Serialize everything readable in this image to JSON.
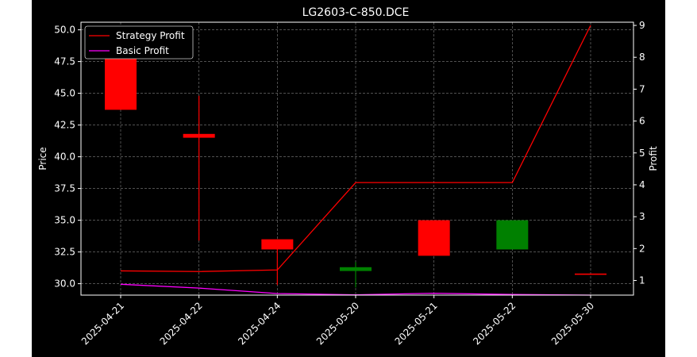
{
  "chart_data": {
    "type": "candlestick",
    "title": "LG2603-C-850.DCE",
    "xlabel": "",
    "ylabel": "Price",
    "y2label": "Profit",
    "categories": [
      "2025-04-21",
      "2025-04-22",
      "2025-04-24",
      "2025-05-20",
      "2025-05-21",
      "2025-05-22",
      "2025-05-30"
    ],
    "candles": [
      {
        "open": 50.0,
        "close": 43.7,
        "high": 50.0,
        "low": 43.7
      },
      {
        "open": 41.8,
        "close": 41.5,
        "high": 44.8,
        "low": 33.4
      },
      {
        "open": 33.5,
        "close": 32.7,
        "high": 33.5,
        "low": 29.9
      },
      {
        "open": 31.0,
        "close": 31.3,
        "high": 31.7,
        "low": 29.7
      },
      {
        "open": 35.0,
        "close": 32.2,
        "high": 35.0,
        "low": 32.2
      },
      {
        "open": 32.7,
        "close": 35.0,
        "high": 35.0,
        "low": 32.7
      },
      {
        "open": 30.8,
        "close": 30.7,
        "high": 30.8,
        "low": 30.7
      }
    ],
    "ylim": [
      29.1,
      50.6
    ],
    "yticks": [
      "30.0",
      "32.5",
      "35.0",
      "37.5",
      "40.0",
      "42.5",
      "45.0",
      "47.5",
      "50.0"
    ],
    "y2lim": [
      0.54,
      9.1
    ],
    "y2ticks": [
      "1",
      "2",
      "3",
      "4",
      "5",
      "6",
      "7",
      "8",
      "9"
    ],
    "series": [
      {
        "name": "Strategy Profit",
        "axis": "right",
        "color": "#ff0000",
        "values": [
          1.3,
          1.28,
          1.33,
          4.07,
          4.07,
          4.07,
          9.0
        ]
      },
      {
        "name": "Basic Profit",
        "axis": "right",
        "color": "#ff00ff",
        "values": [
          0.88,
          0.76,
          0.59,
          0.55,
          0.6,
          0.56,
          0.54
        ]
      }
    ],
    "colors": {
      "up": "#008000",
      "down": "#ff0000",
      "background": "#000000",
      "foreground": "#ffffff",
      "grid": "#808080"
    },
    "grid": true,
    "legend": "upper-left"
  }
}
